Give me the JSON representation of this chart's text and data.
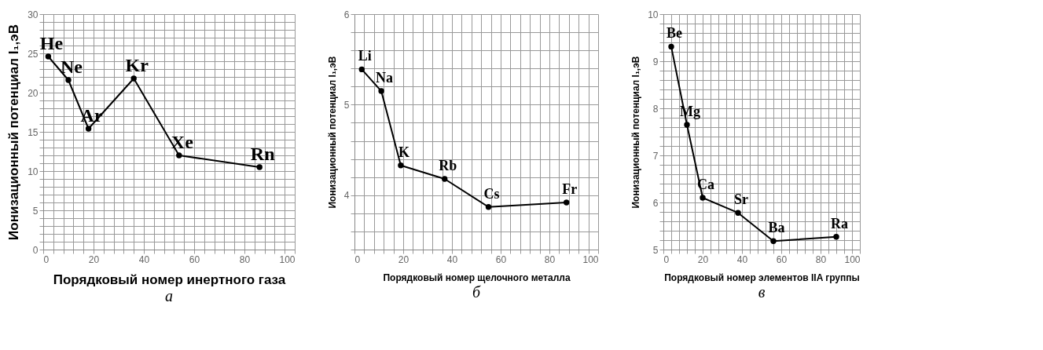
{
  "chart_data": [
    {
      "type": "line",
      "xlabel": "Порядковый номер инертного газа",
      "ylabel": "Ионизационный  потенциал I₁,эВ",
      "x": [
        2,
        10,
        18,
        36,
        54,
        86
      ],
      "series": [
        {
          "color": "#000000",
          "values": [
            24.6,
            21.6,
            15.4,
            21.8,
            12.0,
            10.5
          ]
        }
      ],
      "xlim": [
        0,
        100
      ],
      "xticks": [
        0,
        {
          "value": 4,
          "label": null
        },
        {
          "value": 8,
          "label": null
        },
        {
          "value": 12,
          "label": null
        },
        {
          "value": 16,
          "label": null
        },
        20,
        {
          "value": 24,
          "label": null
        },
        {
          "value": 28,
          "label": null
        },
        {
          "value": 32,
          "label": null
        },
        {
          "value": 36,
          "label": null
        },
        40,
        {
          "value": 44,
          "label": null
        },
        {
          "value": 48,
          "label": null
        },
        {
          "value": 52,
          "label": null
        },
        {
          "value": 56,
          "label": null
        },
        60,
        {
          "value": 64,
          "label": null
        },
        {
          "value": 68,
          "label": null
        },
        {
          "value": 72,
          "label": null
        },
        {
          "value": 76,
          "label": null
        },
        80,
        {
          "value": 84,
          "label": null
        },
        {
          "value": 88,
          "label": null
        },
        {
          "value": 92,
          "label": null
        },
        {
          "value": 96,
          "label": null
        },
        100
      ],
      "ylim": [
        0,
        30
      ],
      "yticks": [
        0,
        {
          "value": 1,
          "label": null
        },
        {
          "value": 2,
          "label": null
        },
        {
          "value": 3,
          "label": null
        },
        {
          "value": 4,
          "label": null
        },
        5,
        {
          "value": 6,
          "label": null
        },
        {
          "value": 7,
          "label": null
        },
        {
          "value": 8,
          "label": null
        },
        {
          "value": 9,
          "label": null
        },
        10,
        {
          "value": 11,
          "label": null
        },
        {
          "value": 12,
          "label": null
        },
        {
          "value": 13,
          "label": null
        },
        {
          "value": 14,
          "label": null
        },
        15,
        {
          "value": 16,
          "label": null
        },
        {
          "value": 17,
          "label": null
        },
        {
          "value": 18,
          "label": null
        },
        {
          "value": 19,
          "label": null
        },
        20,
        {
          "value": 21,
          "label": null
        },
        {
          "value": 22,
          "label": null
        },
        {
          "value": 23,
          "label": null
        },
        {
          "value": 24,
          "label": null
        },
        25,
        {
          "value": 26,
          "label": null
        },
        {
          "value": 27,
          "label": null
        },
        {
          "value": 28,
          "label": null
        },
        {
          "value": 29,
          "label": null
        },
        30
      ],
      "grid": true,
      "marker": "circle",
      "annotations": [
        {
          "text": "He",
          "x": 2,
          "y": 24.6
        },
        {
          "text": "Ne",
          "x": 10,
          "y": 21.6
        },
        {
          "text": "Ar",
          "x": 18,
          "y": 15.4
        },
        {
          "text": "Kr",
          "x": 36,
          "y": 21.8
        },
        {
          "text": "Xe",
          "x": 54,
          "y": 12.0
        },
        {
          "text": "Rn",
          "x": 86,
          "y": 10.5
        },
        "а"
      ]
    },
    {
      "type": "line",
      "xlabel": "Порядковый номер  щелочного металла",
      "ylabel": "Ионизационный потенциал I₁,эВ",
      "x": [
        3,
        11,
        19,
        37,
        55,
        87
      ],
      "series": [
        {
          "color": "#000000",
          "values": [
            5.39,
            5.15,
            4.33,
            4.18,
            3.87,
            3.92
          ]
        }
      ],
      "xlim": [
        0,
        100
      ],
      "xticks": [
        0,
        {
          "value": 4,
          "label": null
        },
        {
          "value": 8,
          "label": null
        },
        {
          "value": 12,
          "label": null
        },
        {
          "value": 16,
          "label": null
        },
        20,
        {
          "value": 24,
          "label": null
        },
        {
          "value": 28,
          "label": null
        },
        {
          "value": 32,
          "label": null
        },
        {
          "value": 36,
          "label": null
        },
        40,
        {
          "value": 44,
          "label": null
        },
        {
          "value": 48,
          "label": null
        },
        {
          "value": 52,
          "label": null
        },
        {
          "value": 56,
          "label": null
        },
        60,
        {
          "value": 64,
          "label": null
        },
        {
          "value": 68,
          "label": null
        },
        {
          "value": 72,
          "label": null
        },
        {
          "value": 76,
          "label": null
        },
        80,
        {
          "value": 84,
          "label": null
        },
        {
          "value": 88,
          "label": null
        },
        {
          "value": 92,
          "label": null
        },
        {
          "value": 96,
          "label": null
        },
        100
      ],
      "ylim": [
        3.4,
        6
      ],
      "yticks": [
        {
          "value": 3.4,
          "label": null
        },
        {
          "value": 3.6,
          "label": null
        },
        {
          "value": 3.8,
          "label": null
        },
        4,
        {
          "value": 4.2,
          "label": null
        },
        {
          "value": 4.4,
          "label": null
        },
        {
          "value": 4.6,
          "label": null
        },
        {
          "value": 4.8,
          "label": null
        },
        5,
        {
          "value": 5.2,
          "label": null
        },
        {
          "value": 5.4,
          "label": null
        },
        {
          "value": 5.6,
          "label": null
        },
        {
          "value": 5.8,
          "label": null
        },
        6
      ],
      "grid": true,
      "marker": "circle",
      "annotations": [
        {
          "text": "Li",
          "x": 3,
          "y": 5.39
        },
        {
          "text": "Na",
          "x": 11,
          "y": 5.15
        },
        {
          "text": "K",
          "x": 19,
          "y": 4.33
        },
        {
          "text": "Rb",
          "x": 37,
          "y": 4.18
        },
        {
          "text": "Cs",
          "x": 55,
          "y": 3.87
        },
        {
          "text": "Fr",
          "x": 87,
          "y": 3.92
        },
        "б"
      ]
    },
    {
      "type": "line",
      "xlabel": "Порядковый номер  элементов IIA группы",
      "ylabel": "Ионизационный потенциал I₁,эВ",
      "x": [
        4,
        12,
        20,
        38,
        56,
        88
      ],
      "series": [
        {
          "color": "#000000",
          "values": [
            9.31,
            7.65,
            6.1,
            5.78,
            5.18,
            5.27
          ]
        }
      ],
      "xlim": [
        0,
        100
      ],
      "xticks": [
        0,
        {
          "value": 4,
          "label": null
        },
        {
          "value": 8,
          "label": null
        },
        {
          "value": 12,
          "label": null
        },
        {
          "value": 16,
          "label": null
        },
        20,
        {
          "value": 24,
          "label": null
        },
        {
          "value": 28,
          "label": null
        },
        {
          "value": 32,
          "label": null
        },
        {
          "value": 36,
          "label": null
        },
        40,
        {
          "value": 44,
          "label": null
        },
        {
          "value": 48,
          "label": null
        },
        {
          "value": 52,
          "label": null
        },
        {
          "value": 56,
          "label": null
        },
        60,
        {
          "value": 64,
          "label": null
        },
        {
          "value": 68,
          "label": null
        },
        {
          "value": 72,
          "label": null
        },
        {
          "value": 76,
          "label": null
        },
        80,
        {
          "value": 84,
          "label": null
        },
        {
          "value": 88,
          "label": null
        },
        {
          "value": 92,
          "label": null
        },
        {
          "value": 96,
          "label": null
        },
        100
      ],
      "ylim": [
        5,
        10
      ],
      "yticks": [
        5,
        {
          "value": 5.2,
          "label": null
        },
        {
          "value": 5.4,
          "label": null
        },
        {
          "value": 5.6,
          "label": null
        },
        {
          "value": 5.8,
          "label": null
        },
        6,
        {
          "value": 6.2,
          "label": null
        },
        {
          "value": 6.4,
          "label": null
        },
        {
          "value": 6.6,
          "label": null
        },
        {
          "value": 6.8,
          "label": null
        },
        7,
        {
          "value": 7.2,
          "label": null
        },
        {
          "value": 7.4,
          "label": null
        },
        {
          "value": 7.6,
          "label": null
        },
        {
          "value": 7.8,
          "label": null
        },
        8,
        {
          "value": 8.2,
          "label": null
        },
        {
          "value": 8.4,
          "label": null
        },
        {
          "value": 8.6,
          "label": null
        },
        {
          "value": 8.8,
          "label": null
        },
        9,
        {
          "value": 9.2,
          "label": null
        },
        {
          "value": 9.4,
          "label": null
        },
        {
          "value": 9.6,
          "label": null
        },
        {
          "value": 9.8,
          "label": null
        },
        10
      ],
      "grid": true,
      "marker": "circle",
      "annotations": [
        {
          "text": "Be",
          "x": 4,
          "y": 9.31
        },
        {
          "text": "Mg",
          "x": 12,
          "y": 7.65
        },
        {
          "text": "Ca",
          "x": 20,
          "y": 6.1
        },
        {
          "text": "Sr",
          "x": 38,
          "y": 5.78
        },
        {
          "text": "Ba",
          "x": 56,
          "y": 5.18
        },
        {
          "text": "Ra",
          "x": 88,
          "y": 5.27
        },
        "в"
      ]
    }
  ]
}
